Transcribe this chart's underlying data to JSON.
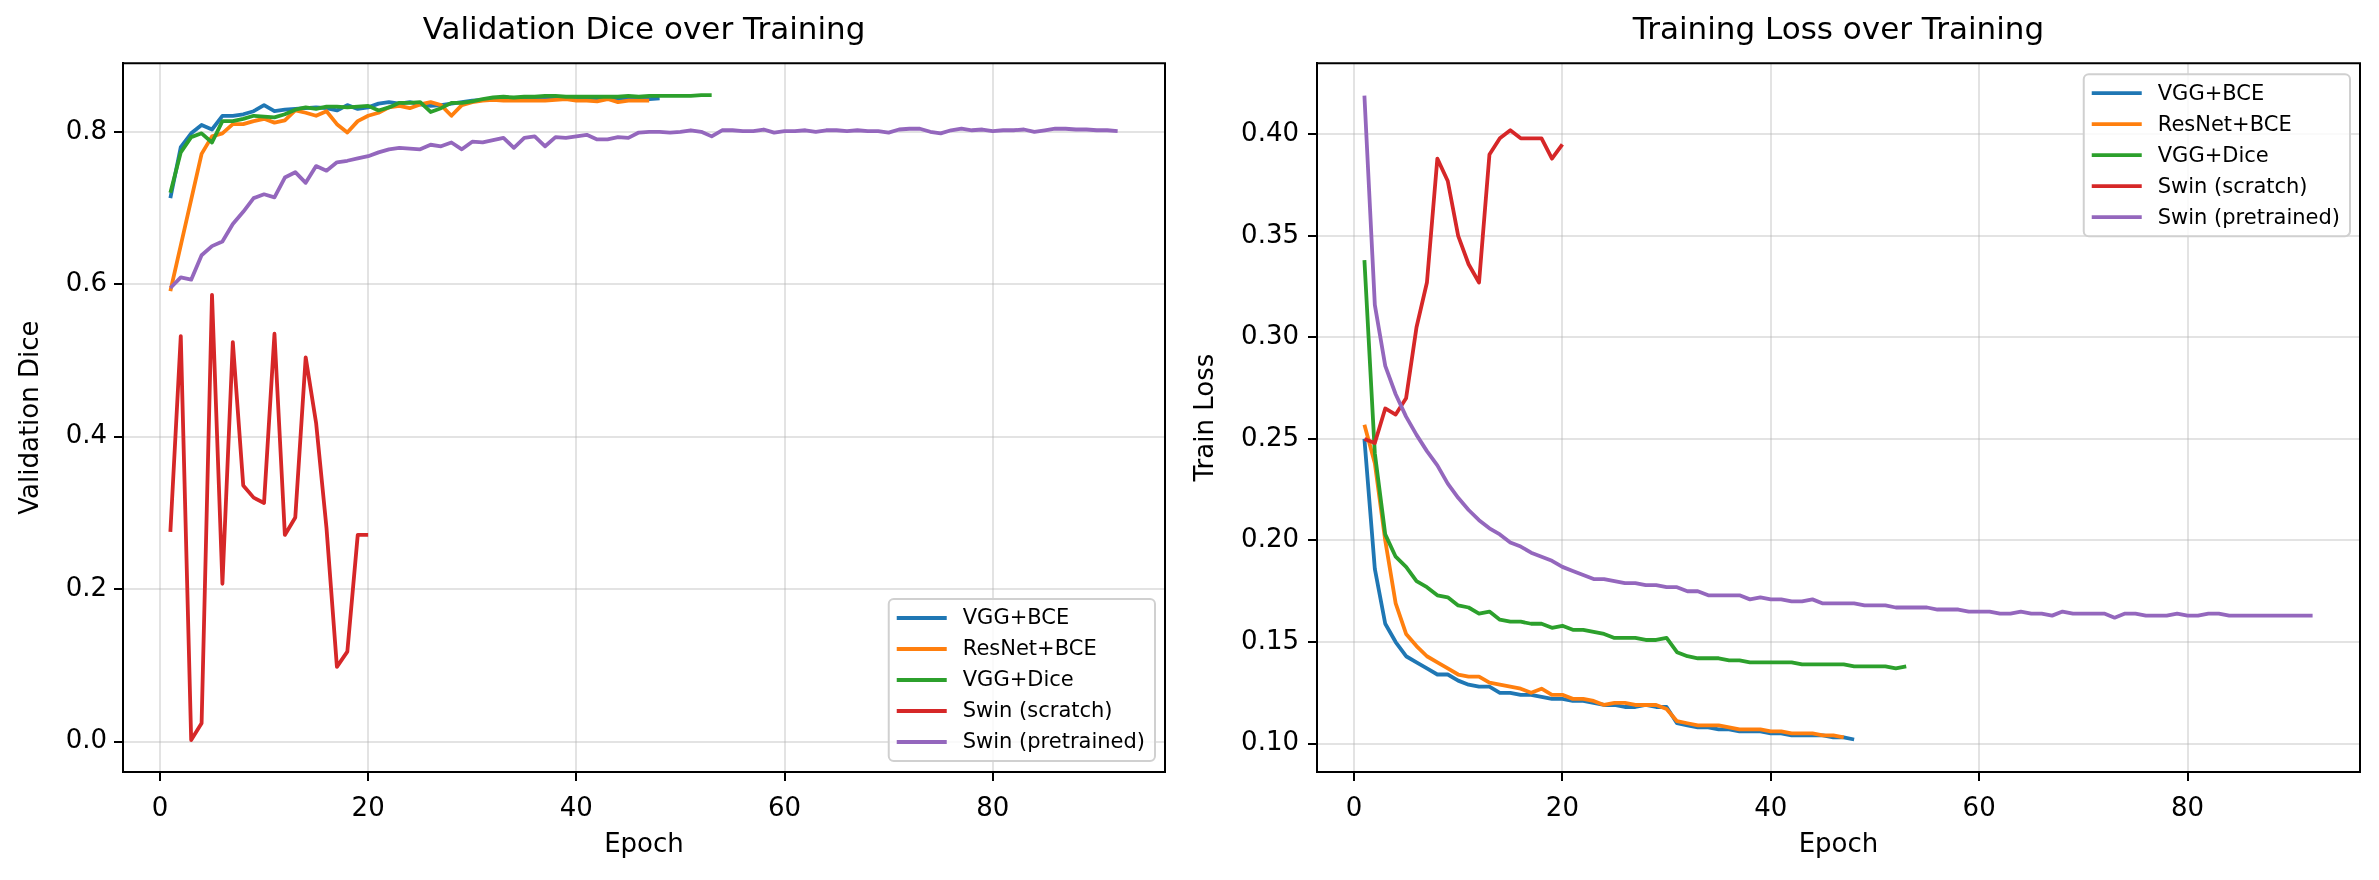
{
  "chart_data": [
    {
      "type": "line",
      "title": "Validation Dice over Training",
      "xlabel": "Epoch",
      "ylabel": "Validation Dice",
      "xlim": [
        -3.55,
        96.55
      ],
      "xticks": [
        0,
        20,
        40,
        60,
        80
      ],
      "ylim": [
        -0.04,
        0.89
      ],
      "yticks": [
        {
          "value": 0,
          "label": "0.0"
        },
        0.2,
        0.4,
        0.6,
        0.8
      ],
      "grid": true,
      "legend": "bottom right",
      "series": [
        {
          "name": "VGG+BCE",
          "color": "#1f77b4",
          "x": [
            1,
            2,
            3,
            4,
            5,
            6,
            7,
            8,
            9,
            10,
            11,
            12,
            13,
            14,
            15,
            16,
            17,
            18,
            19,
            20,
            21,
            22,
            23,
            24,
            25,
            26,
            27,
            28,
            29,
            30,
            31,
            32,
            33,
            34,
            35,
            36,
            37,
            38,
            39,
            40,
            41,
            42,
            43,
            44,
            45,
            46,
            47,
            48
          ],
          "values": [
            0.713,
            0.78,
            0.798,
            0.809,
            0.803,
            0.821,
            0.821,
            0.823,
            0.827,
            0.835,
            0.827,
            0.829,
            0.83,
            0.831,
            0.832,
            0.831,
            0.828,
            0.835,
            0.83,
            0.832,
            0.837,
            0.839,
            0.837,
            0.839,
            0.836,
            0.834,
            0.835,
            0.837,
            0.839,
            0.841,
            0.842,
            0.843,
            0.844,
            0.844,
            0.844,
            0.843,
            0.844,
            0.844,
            0.843,
            0.843,
            0.844,
            0.843,
            0.843,
            0.843,
            0.844,
            0.843,
            0.843,
            0.844
          ]
        },
        {
          "name": "ResNet+BCE",
          "color": "#ff7f0e",
          "x": [
            1,
            2,
            3,
            4,
            5,
            6,
            7,
            8,
            9,
            10,
            11,
            12,
            13,
            14,
            15,
            16,
            17,
            18,
            19,
            20,
            21,
            22,
            23,
            24,
            25,
            26,
            27,
            28,
            29,
            30,
            31,
            32,
            33,
            34,
            35,
            36,
            37,
            38,
            39,
            40,
            41,
            42,
            43,
            44,
            45,
            46,
            47
          ],
          "values": [
            0.591,
            0.651,
            0.711,
            0.771,
            0.794,
            0.798,
            0.81,
            0.81,
            0.814,
            0.817,
            0.812,
            0.815,
            0.828,
            0.825,
            0.821,
            0.827,
            0.81,
            0.799,
            0.814,
            0.821,
            0.825,
            0.832,
            0.834,
            0.831,
            0.836,
            0.839,
            0.835,
            0.821,
            0.835,
            0.839,
            0.841,
            0.842,
            0.841,
            0.841,
            0.841,
            0.841,
            0.841,
            0.842,
            0.843,
            0.841,
            0.841,
            0.84,
            0.843,
            0.839,
            0.841,
            0.841,
            0.841
          ]
        },
        {
          "name": "VGG+Dice",
          "color": "#2ca02c",
          "x": [
            1,
            2,
            3,
            4,
            5,
            6,
            7,
            8,
            9,
            10,
            11,
            12,
            13,
            14,
            15,
            16,
            17,
            18,
            19,
            20,
            21,
            22,
            23,
            24,
            25,
            26,
            27,
            28,
            29,
            30,
            31,
            32,
            33,
            34,
            35,
            36,
            37,
            38,
            39,
            40,
            41,
            42,
            43,
            44,
            45,
            46,
            47,
            48,
            49,
            50,
            51,
            52,
            53
          ],
          "values": [
            0.72,
            0.773,
            0.793,
            0.798,
            0.786,
            0.814,
            0.814,
            0.817,
            0.821,
            0.82,
            0.819,
            0.823,
            0.829,
            0.832,
            0.83,
            0.833,
            0.833,
            0.832,
            0.833,
            0.834,
            0.828,
            0.832,
            0.838,
            0.838,
            0.839,
            0.826,
            0.831,
            0.838,
            0.838,
            0.84,
            0.843,
            0.845,
            0.846,
            0.845,
            0.846,
            0.846,
            0.847,
            0.847,
            0.846,
            0.846,
            0.846,
            0.846,
            0.846,
            0.846,
            0.847,
            0.846,
            0.847,
            0.847,
            0.847,
            0.847,
            0.847,
            0.848,
            0.848
          ]
        },
        {
          "name": "Swin (scratch)",
          "color": "#d62728",
          "x": [
            1,
            2,
            3,
            4,
            5,
            6,
            7,
            8,
            9,
            10,
            11,
            12,
            13,
            14,
            15,
            16,
            17,
            18,
            19,
            20
          ],
          "values": [
            0.275,
            0.532,
            0.002,
            0.024,
            0.586,
            0.207,
            0.524,
            0.336,
            0.32,
            0.313,
            0.535,
            0.271,
            0.294,
            0.504,
            0.418,
            0.28,
            0.098,
            0.118,
            0.271,
            0.271
          ]
        },
        {
          "name": "Swin (pretrained)",
          "color": "#9467bd",
          "x": [
            1,
            2,
            3,
            4,
            5,
            6,
            7,
            8,
            9,
            10,
            11,
            12,
            13,
            14,
            15,
            16,
            17,
            18,
            19,
            20,
            21,
            22,
            23,
            24,
            25,
            26,
            27,
            28,
            29,
            30,
            31,
            32,
            33,
            34,
            35,
            36,
            37,
            38,
            39,
            40,
            41,
            42,
            43,
            44,
            45,
            46,
            47,
            48,
            49,
            50,
            51,
            52,
            53,
            54,
            55,
            56,
            57,
            58,
            59,
            60,
            61,
            62,
            63,
            64,
            65,
            66,
            67,
            68,
            69,
            70,
            71,
            72,
            73,
            74,
            75,
            76,
            77,
            78,
            79,
            80,
            81,
            82,
            83,
            84,
            85,
            86,
            87,
            88,
            89,
            90,
            91,
            92
          ],
          "values": [
            0.595,
            0.609,
            0.606,
            0.638,
            0.65,
            0.656,
            0.679,
            0.695,
            0.713,
            0.718,
            0.714,
            0.74,
            0.747,
            0.733,
            0.755,
            0.749,
            0.76,
            0.762,
            0.765,
            0.768,
            0.773,
            0.777,
            0.779,
            0.778,
            0.777,
            0.783,
            0.781,
            0.786,
            0.777,
            0.787,
            0.786,
            0.789,
            0.792,
            0.779,
            0.792,
            0.794,
            0.781,
            0.793,
            0.792,
            0.794,
            0.796,
            0.79,
            0.79,
            0.793,
            0.792,
            0.799,
            0.8,
            0.8,
            0.799,
            0.8,
            0.802,
            0.8,
            0.794,
            0.802,
            0.802,
            0.801,
            0.801,
            0.803,
            0.799,
            0.801,
            0.801,
            0.802,
            0.8,
            0.802,
            0.802,
            0.801,
            0.802,
            0.801,
            0.801,
            0.799,
            0.803,
            0.804,
            0.804,
            0.8,
            0.798,
            0.802,
            0.804,
            0.802,
            0.803,
            0.801,
            0.802,
            0.802,
            0.803,
            0.8,
            0.802,
            0.804,
            0.804,
            0.803,
            0.803,
            0.802,
            0.802,
            0.801
          ]
        }
      ]
    },
    {
      "type": "line",
      "title": "Training Loss over Training",
      "xlabel": "Epoch",
      "ylabel": "Train Loss",
      "xlim": [
        -3.55,
        96.55
      ],
      "xticks": [
        0,
        20,
        40,
        60,
        80
      ],
      "ylim": [
        0.086,
        0.435
      ],
      "yticks": [
        {
          "value": 0.1,
          "label": "0.10"
        },
        0.15,
        {
          "value": 0.2,
          "label": "0.20"
        },
        0.25,
        {
          "value": 0.3,
          "label": "0.30"
        },
        0.35,
        {
          "value": 0.4,
          "label": "0.40"
        }
      ],
      "grid": true,
      "legend": "top right",
      "series": [
        {
          "name": "VGG+BCE",
          "color": "#1f77b4",
          "x": [
            1,
            2,
            3,
            4,
            5,
            6,
            7,
            8,
            9,
            10,
            11,
            12,
            13,
            14,
            15,
            16,
            17,
            18,
            19,
            20,
            21,
            22,
            23,
            24,
            25,
            26,
            27,
            28,
            29,
            30,
            31,
            32,
            33,
            34,
            35,
            36,
            37,
            38,
            39,
            40,
            41,
            42,
            43,
            44,
            45,
            46,
            47,
            48
          ],
          "values": [
            0.25,
            0.186,
            0.159,
            0.15,
            0.143,
            0.14,
            0.137,
            0.134,
            0.134,
            0.131,
            0.129,
            0.128,
            0.128,
            0.125,
            0.125,
            0.124,
            0.124,
            0.123,
            0.122,
            0.122,
            0.121,
            0.121,
            0.12,
            0.119,
            0.119,
            0.118,
            0.118,
            0.119,
            0.118,
            0.118,
            0.11,
            0.109,
            0.108,
            0.108,
            0.107,
            0.107,
            0.106,
            0.106,
            0.106,
            0.105,
            0.105,
            0.104,
            0.104,
            0.104,
            0.104,
            0.103,
            0.103,
            0.102
          ]
        },
        {
          "name": "ResNet+BCE",
          "color": "#ff7f0e",
          "x": [
            1,
            2,
            3,
            4,
            5,
            6,
            7,
            8,
            9,
            10,
            11,
            12,
            13,
            14,
            15,
            16,
            17,
            18,
            19,
            20,
            21,
            22,
            23,
            24,
            25,
            26,
            27,
            28,
            29,
            30,
            31,
            32,
            33,
            34,
            35,
            36,
            37,
            38,
            39,
            40,
            41,
            42,
            43,
            44,
            45,
            46,
            47
          ],
          "values": [
            0.257,
            0.238,
            0.2,
            0.169,
            0.154,
            0.148,
            0.143,
            0.14,
            0.137,
            0.134,
            0.133,
            0.133,
            0.13,
            0.129,
            0.128,
            0.127,
            0.125,
            0.127,
            0.124,
            0.124,
            0.122,
            0.122,
            0.121,
            0.119,
            0.12,
            0.12,
            0.119,
            0.119,
            0.119,
            0.117,
            0.111,
            0.11,
            0.109,
            0.109,
            0.109,
            0.108,
            0.107,
            0.107,
            0.107,
            0.106,
            0.106,
            0.105,
            0.105,
            0.105,
            0.104,
            0.104,
            0.103
          ]
        },
        {
          "name": "VGG+Dice",
          "color": "#2ca02c",
          "x": [
            1,
            2,
            3,
            4,
            5,
            6,
            7,
            8,
            9,
            10,
            11,
            12,
            13,
            14,
            15,
            16,
            17,
            18,
            19,
            20,
            21,
            22,
            23,
            24,
            25,
            26,
            27,
            28,
            29,
            30,
            31,
            32,
            33,
            34,
            35,
            36,
            37,
            38,
            39,
            40,
            41,
            42,
            43,
            44,
            45,
            46,
            47,
            48,
            49,
            50,
            51,
            52,
            53
          ],
          "values": [
            0.338,
            0.243,
            0.203,
            0.192,
            0.187,
            0.18,
            0.177,
            0.173,
            0.172,
            0.168,
            0.167,
            0.164,
            0.165,
            0.161,
            0.16,
            0.16,
            0.159,
            0.159,
            0.157,
            0.158,
            0.156,
            0.156,
            0.155,
            0.154,
            0.152,
            0.152,
            0.152,
            0.151,
            0.151,
            0.152,
            0.145,
            0.143,
            0.142,
            0.142,
            0.142,
            0.141,
            0.141,
            0.14,
            0.14,
            0.14,
            0.14,
            0.14,
            0.139,
            0.139,
            0.139,
            0.139,
            0.139,
            0.138,
            0.138,
            0.138,
            0.138,
            0.137,
            0.138
          ]
        },
        {
          "name": "Swin (scratch)",
          "color": "#d62728",
          "x": [
            1,
            2,
            3,
            4,
            5,
            6,
            7,
            8,
            9,
            10,
            11,
            12,
            13,
            14,
            15,
            16,
            17,
            18,
            19,
            20
          ],
          "values": [
            0.25,
            0.248,
            0.265,
            0.262,
            0.27,
            0.305,
            0.327,
            0.388,
            0.377,
            0.35,
            0.336,
            0.327,
            0.39,
            0.398,
            0.402,
            0.398,
            0.398,
            0.398,
            0.388,
            0.395
          ]
        },
        {
          "name": "Swin (pretrained)",
          "color": "#9467bd",
          "x": [
            1,
            2,
            3,
            4,
            5,
            6,
            7,
            8,
            9,
            10,
            11,
            12,
            13,
            14,
            15,
            16,
            17,
            18,
            19,
            20,
            21,
            22,
            23,
            24,
            25,
            26,
            27,
            28,
            29,
            30,
            31,
            32,
            33,
            34,
            35,
            36,
            37,
            38,
            39,
            40,
            41,
            42,
            43,
            44,
            45,
            46,
            47,
            48,
            49,
            50,
            51,
            52,
            53,
            54,
            55,
            56,
            57,
            58,
            59,
            60,
            61,
            62,
            63,
            64,
            65,
            66,
            67,
            68,
            69,
            70,
            71,
            72,
            73,
            74,
            75,
            76,
            77,
            78,
            79,
            80,
            81,
            82,
            83,
            84,
            85,
            86,
            87,
            88,
            89,
            90,
            91,
            92
          ],
          "values": [
            0.419,
            0.316,
            0.286,
            0.272,
            0.261,
            0.252,
            0.244,
            0.237,
            0.228,
            0.221,
            0.215,
            0.21,
            0.206,
            0.203,
            0.199,
            0.197,
            0.194,
            0.192,
            0.19,
            0.187,
            0.185,
            0.183,
            0.181,
            0.181,
            0.18,
            0.179,
            0.179,
            0.178,
            0.178,
            0.177,
            0.177,
            0.175,
            0.175,
            0.173,
            0.173,
            0.173,
            0.173,
            0.171,
            0.172,
            0.171,
            0.171,
            0.17,
            0.17,
            0.171,
            0.169,
            0.169,
            0.169,
            0.169,
            0.168,
            0.168,
            0.168,
            0.167,
            0.167,
            0.167,
            0.167,
            0.166,
            0.166,
            0.166,
            0.165,
            0.165,
            0.165,
            0.164,
            0.164,
            0.165,
            0.164,
            0.164,
            0.163,
            0.165,
            0.164,
            0.164,
            0.164,
            0.164,
            0.162,
            0.164,
            0.164,
            0.163,
            0.163,
            0.163,
            0.164,
            0.163,
            0.163,
            0.164,
            0.164,
            0.163,
            0.163,
            0.163,
            0.163,
            0.163,
            0.163,
            0.163,
            0.163,
            0.163
          ]
        }
      ]
    }
  ]
}
